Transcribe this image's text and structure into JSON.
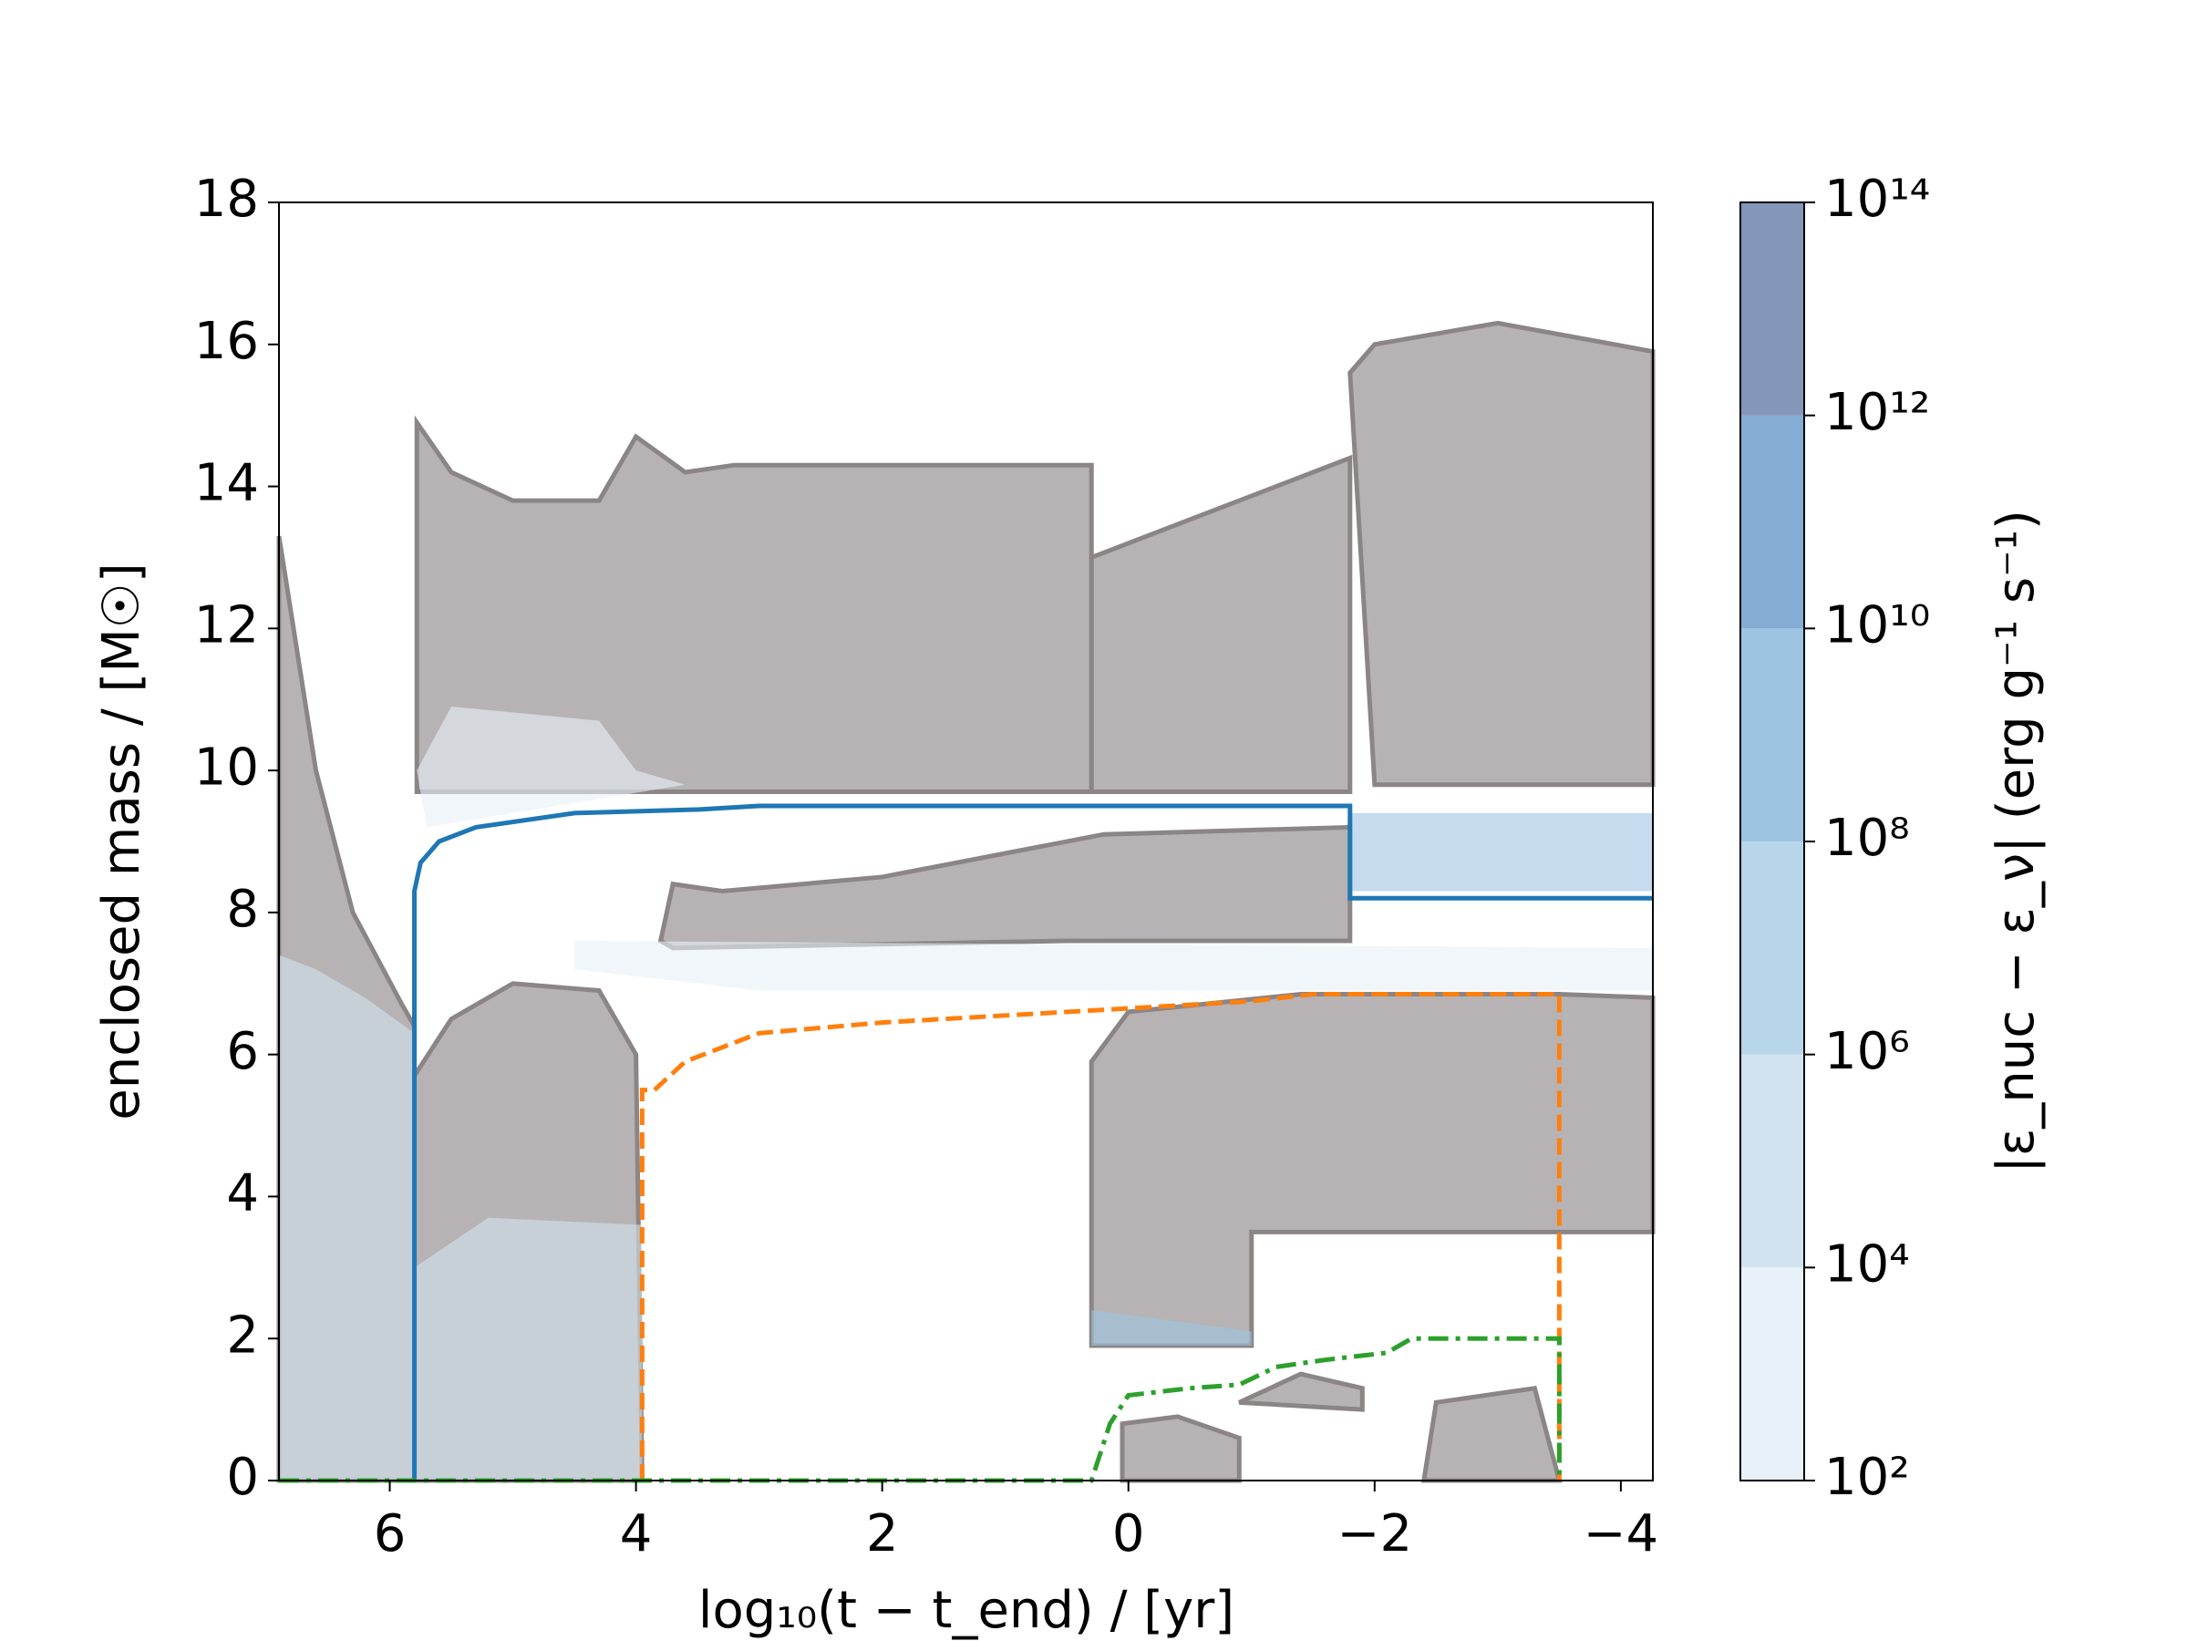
{
  "chart_data": {
    "type": "kippenhahn",
    "x_label": "log₁₀(t − t_end) / [yr]",
    "y_label": "enclosed mass / [M☉]",
    "colorbar_label": "|ε_nuc − ε_ν| (erg g⁻¹ s⁻¹)",
    "xlim": [
      6.9,
      -4.26
    ],
    "ylim": [
      0,
      18
    ],
    "xticks": [
      6,
      4,
      2,
      0,
      {
        "value": -2,
        "label": "−2"
      },
      {
        "value": -4,
        "label": "−4"
      }
    ],
    "yticks": [
      0,
      2,
      4,
      6,
      8,
      10,
      12,
      14,
      16,
      18
    ],
    "colorbar": {
      "log": true,
      "lim": [
        100,
        100000000000000
      ],
      "levels": [
        100,
        10000,
        1000000,
        100000000,
        10000000000,
        1000000000000,
        100000000000000
      ],
      "colors": [
        "#e8f0f8",
        "#d2e3ef",
        "#b8d6ea",
        "#9dc4e1",
        "#85acd3",
        "#8597b8"
      ],
      "ticks": [
        {
          "value": 100,
          "label": "10²"
        },
        {
          "value": 10000,
          "label": "10⁴"
        },
        {
          "value": 1000000,
          "label": "10⁶"
        },
        {
          "value": 100000000,
          "label": "10⁸"
        },
        {
          "value": 10000000000,
          "label": "10¹⁰"
        },
        {
          "value": 1000000000000,
          "label": "10¹²"
        },
        {
          "value": 100000000000000,
          "label": "10¹⁴"
        }
      ]
    },
    "region_color": "#b7b3b4",
    "region_edge": "#8b8586",
    "regions": [
      {
        "x": [
          6.9,
          6.6,
          6.3,
          5.9,
          5.8,
          5.8,
          6.9
        ],
        "y": [
          13.3,
          10,
          8,
          6.7,
          6.4,
          0,
          0
        ]
      },
      {
        "x": [
          5.78,
          5.78,
          5.5,
          5,
          4.3,
          4,
          3.6,
          3.2,
          0.3,
          0.3
        ],
        "y": [
          9.7,
          14.9,
          14.2,
          13.8,
          13.8,
          14.7,
          14.2,
          14.3,
          14.3,
          9.7
        ]
      },
      {
        "x": [
          5.8,
          5.5,
          5,
          4.3,
          4,
          3.95,
          5.8
        ],
        "y": [
          5.7,
          6.5,
          7,
          6.9,
          6,
          0,
          0
        ]
      },
      {
        "x": [
          3.8,
          3.7,
          3.3,
          2,
          0.2,
          -1.8,
          -1.8,
          0.5,
          3.7
        ],
        "y": [
          7.6,
          8.4,
          8.3,
          8.5,
          9.1,
          9.2,
          7.6,
          7.6,
          7.5
        ]
      },
      {
        "x": [
          0.3,
          -1.8,
          -1.8,
          0.3
        ],
        "y": [
          13,
          14.4,
          9.7,
          9.7
        ]
      },
      {
        "x": [
          -1.8,
          -2,
          -3,
          -4.26,
          -4.26,
          -2
        ],
        "y": [
          15.6,
          16,
          16.3,
          15.9,
          9.8,
          9.8
        ]
      },
      {
        "x": [
          0.3,
          0.3,
          0,
          -1.4,
          -3.5,
          -4.26,
          -4.26,
          -1,
          -1
        ],
        "y": [
          1.9,
          5.9,
          6.6,
          6.85,
          6.85,
          6.8,
          3.5,
          3.5,
          1.9
        ]
      },
      {
        "x": [
          0.05,
          0.05,
          -0.4,
          -0.9,
          -0.9
        ],
        "y": [
          0,
          0.8,
          0.9,
          0.6,
          0
        ]
      },
      {
        "x": [
          -0.9,
          -1.4,
          -1.9,
          -1.9
        ],
        "y": [
          1.1,
          1.5,
          1.3,
          1.0
        ]
      },
      {
        "x": [
          -2.4,
          -2.5,
          -3.3,
          -3.5
        ],
        "y": [
          0,
          1.1,
          1.3,
          0
        ]
      }
    ],
    "burning": [
      {
        "level": 100,
        "x": [
          4.5,
          3,
          -4.26,
          -4.26,
          4.5
        ],
        "y": [
          7.2,
          6.9,
          6.9,
          7.5,
          7.6
        ]
      },
      {
        "level": 10000,
        "x": [
          6.9,
          6.6,
          6.2,
          5.8,
          5.8,
          6.9
        ],
        "y": [
          7.4,
          7.2,
          6.8,
          6.3,
          0,
          0
        ]
      },
      {
        "level": 100,
        "x": [
          5.78,
          5.5,
          4.3,
          4,
          3.6,
          5.7
        ],
        "y": [
          10,
          10.9,
          10.7,
          10,
          9.8,
          9.2
        ]
      },
      {
        "level": 10000,
        "x": [
          3.95,
          3.95,
          5.2,
          5.8,
          5.8
        ],
        "y": [
          0,
          3.6,
          3.7,
          3,
          0
        ]
      },
      {
        "level": 100000000,
        "x": [
          -1.8,
          -1.8,
          -4.26,
          -4.26
        ],
        "y": [
          9.4,
          8.3,
          8.3,
          9.4
        ]
      },
      {
        "level": 100000000,
        "x": [
          0.3,
          0.3,
          -1,
          -1
        ],
        "y": [
          2.4,
          1.9,
          1.9,
          2.1
        ]
      }
    ],
    "series": [
      {
        "color": "#1f77b4",
        "style": "solid",
        "x": [
          5.8,
          5.8,
          5.75,
          5.6,
          5.3,
          4.5,
          3.5,
          3,
          0,
          -1.8,
          -1.8,
          -4.26
        ],
        "values": [
          0,
          8.3,
          8.7,
          9.0,
          9.2,
          9.4,
          9.45,
          9.5,
          9.5,
          9.5,
          8.2,
          8.2
        ]
      },
      {
        "color": "#ff7f0e",
        "style": "dashed",
        "x": [
          3.95,
          3.95,
          3.85,
          3.6,
          3,
          2,
          0.5,
          -0.5,
          -1,
          -1.5,
          -3.5,
          -3.5
        ],
        "values": [
          0,
          5.5,
          5.5,
          5.9,
          6.3,
          6.45,
          6.6,
          6.7,
          6.75,
          6.85,
          6.85,
          0
        ]
      },
      {
        "color": "#2ca02c",
        "style": "dashdot",
        "x": [
          6.9,
          0.3,
          0.15,
          0,
          -0.5,
          -0.9,
          -1.2,
          -1.6,
          -2.1,
          -2.3,
          -3.5,
          -3.5
        ],
        "values": [
          0,
          0,
          0.8,
          1.2,
          1.3,
          1.35,
          1.6,
          1.7,
          1.8,
          2.0,
          2.0,
          0
        ]
      }
    ]
  }
}
